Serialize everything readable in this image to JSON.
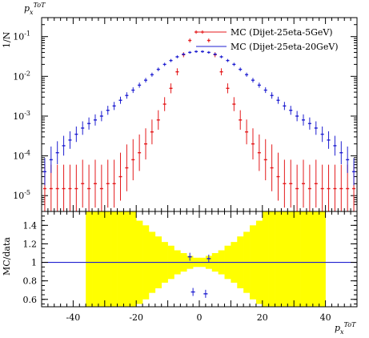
{
  "chart_data": [
    {
      "type": "scatter",
      "title": "p_x^{ToT}",
      "ylabel": "1/N",
      "yscale": "log",
      "xlim": [
        -50,
        50
      ],
      "ylim": [
        4e-06,
        0.3
      ],
      "yticks": [
        "10^-5",
        "10^-4",
        "10^-3",
        "10^-2",
        "10^-1"
      ],
      "legend_position": "top-right",
      "series": [
        {
          "name": "MC (Dijet-25eta-5GeV)",
          "color": "#e41a1c",
          "x": [
            -49,
            -47,
            -45,
            -43,
            -41,
            -39,
            -37,
            -35,
            -33,
            -31,
            -29,
            -27,
            -25,
            -23,
            -21,
            -19,
            -17,
            -15,
            -13,
            -11,
            -9,
            -7,
            -5,
            -3,
            -1,
            1,
            3,
            5,
            7,
            9,
            11,
            13,
            15,
            17,
            19,
            21,
            23,
            25,
            27,
            29,
            31,
            33,
            35,
            37,
            39,
            41,
            43,
            45,
            47,
            49
          ],
          "y": [
            1.5e-05,
            1.5e-05,
            1.5e-05,
            1.5e-05,
            1.5e-05,
            1.5e-05,
            2e-05,
            1.5e-05,
            2e-05,
            1.5e-05,
            2e-05,
            2e-05,
            3e-05,
            5e-05,
            8e-05,
            0.00012,
            0.0002,
            0.0004,
            0.0008,
            0.002,
            0.005,
            0.013,
            0.035,
            0.08,
            0.13,
            0.13,
            0.08,
            0.035,
            0.013,
            0.005,
            0.002,
            0.0008,
            0.0004,
            0.0002,
            0.00012,
            8e-05,
            5e-05,
            3e-05,
            2e-05,
            2e-05,
            1.5e-05,
            2e-05,
            1.5e-05,
            2e-05,
            1.5e-05,
            1.5e-05,
            1.5e-05,
            1.5e-05,
            1.5e-05,
            1.5e-05
          ]
        },
        {
          "name": "MC (Dijet-25eta-20GeV)",
          "color": "#1f1fd1",
          "x": [
            -49,
            -47,
            -45,
            -43,
            -41,
            -39,
            -37,
            -35,
            -33,
            -31,
            -29,
            -27,
            -25,
            -23,
            -21,
            -19,
            -17,
            -15,
            -13,
            -11,
            -9,
            -7,
            -5,
            -3,
            -1,
            1,
            3,
            5,
            7,
            9,
            11,
            13,
            15,
            17,
            19,
            21,
            23,
            25,
            27,
            29,
            31,
            33,
            35,
            37,
            39,
            41,
            43,
            45,
            47,
            49
          ],
          "y": [
            4e-05,
            8e-05,
            0.00012,
            0.00018,
            0.00025,
            0.00035,
            0.0005,
            0.00065,
            0.0008,
            0.001,
            0.0014,
            0.0018,
            0.0025,
            0.0033,
            0.0045,
            0.006,
            0.008,
            0.011,
            0.015,
            0.02,
            0.025,
            0.031,
            0.036,
            0.04,
            0.042,
            0.042,
            0.04,
            0.036,
            0.031,
            0.025,
            0.02,
            0.015,
            0.011,
            0.008,
            0.006,
            0.0045,
            0.0033,
            0.0025,
            0.0018,
            0.0014,
            0.001,
            0.0008,
            0.00065,
            0.0005,
            0.00035,
            0.00025,
            0.00018,
            0.00012,
            8e-05,
            4e-05
          ]
        }
      ]
    },
    {
      "type": "scatter",
      "ylabel": "MC/data",
      "xlabel": "p_x^{ToT}",
      "xlim": [
        -50,
        50
      ],
      "ylim": [
        0.52,
        1.55
      ],
      "yticks": [
        0.6,
        0.8,
        1.0,
        1.2,
        1.4
      ],
      "xticks": [
        -40,
        -20,
        0,
        20,
        40
      ],
      "reference_line": 1.0,
      "band": {
        "color": "#ffff00",
        "x": [
          -35,
          -33,
          -31,
          -29,
          -27,
          -25,
          -23,
          -21,
          -19,
          -17,
          -15,
          -13,
          -11,
          -9,
          -7,
          -5,
          -3,
          -1,
          1,
          3,
          5,
          7,
          9,
          11,
          13,
          15,
          17,
          19,
          21,
          23,
          25,
          27,
          29,
          31,
          33,
          35,
          37,
          39
        ],
        "half_width": [
          1.0,
          0.9,
          1.0,
          0.9,
          1.0,
          1.0,
          0.6,
          0.6,
          0.45,
          0.4,
          0.33,
          0.28,
          0.22,
          0.18,
          0.13,
          0.1,
          0.07,
          0.05,
          0.05,
          0.07,
          0.1,
          0.13,
          0.18,
          0.22,
          0.28,
          0.33,
          0.4,
          0.45,
          0.6,
          0.6,
          1.0,
          1.0,
          0.9,
          1.0,
          0.9,
          1.0,
          1.0,
          1.0
        ]
      },
      "series": [
        {
          "name": "MC (Dijet-25eta-20GeV)",
          "color": "#1f1fd1",
          "x": [
            -3,
            3,
            -2,
            2
          ],
          "y": [
            1.06,
            1.04,
            0.68,
            0.66
          ]
        }
      ]
    }
  ]
}
